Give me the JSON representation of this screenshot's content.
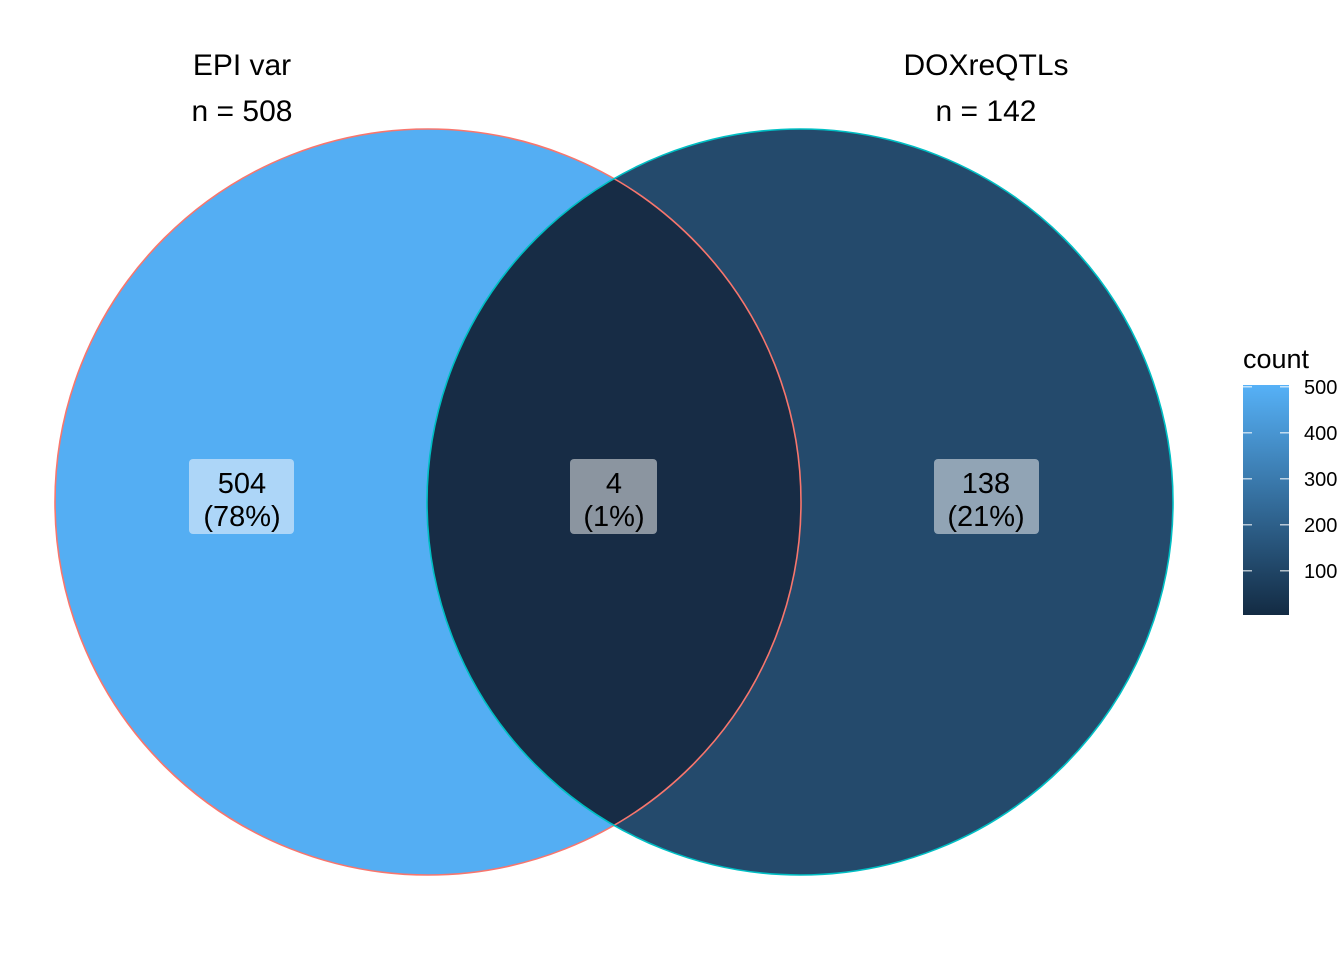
{
  "sets": [
    {
      "name": "EPI var",
      "n_label": "n = 508",
      "border_color": "#F8766D"
    },
    {
      "name": "DOXreQTLs",
      "n_label": "n = 142",
      "border_color": "#00BFC4"
    }
  ],
  "regions": [
    {
      "id": "epi-only",
      "count": "504",
      "percent": "(78%)",
      "count_value": 504,
      "fill": "#54AEF3",
      "label_bg": "#ADD6F8"
    },
    {
      "id": "overlap",
      "count": "4",
      "percent": "(1%)",
      "count_value": 4,
      "fill": "#172C45",
      "label_bg": "#8B95A0"
    },
    {
      "id": "dox-only",
      "count": "138",
      "percent": "(21%)",
      "count_value": 138,
      "fill": "#244A6C",
      "label_bg": "#91A4B5"
    }
  ],
  "legend": {
    "title": "count",
    "ticks": [
      "100",
      "200",
      "300",
      "400",
      "500"
    ],
    "tick_values": [
      100,
      200,
      300,
      400,
      500
    ],
    "range": [
      4,
      504
    ],
    "low_color": "#132B43",
    "high_color": "#56B1F7"
  }
}
